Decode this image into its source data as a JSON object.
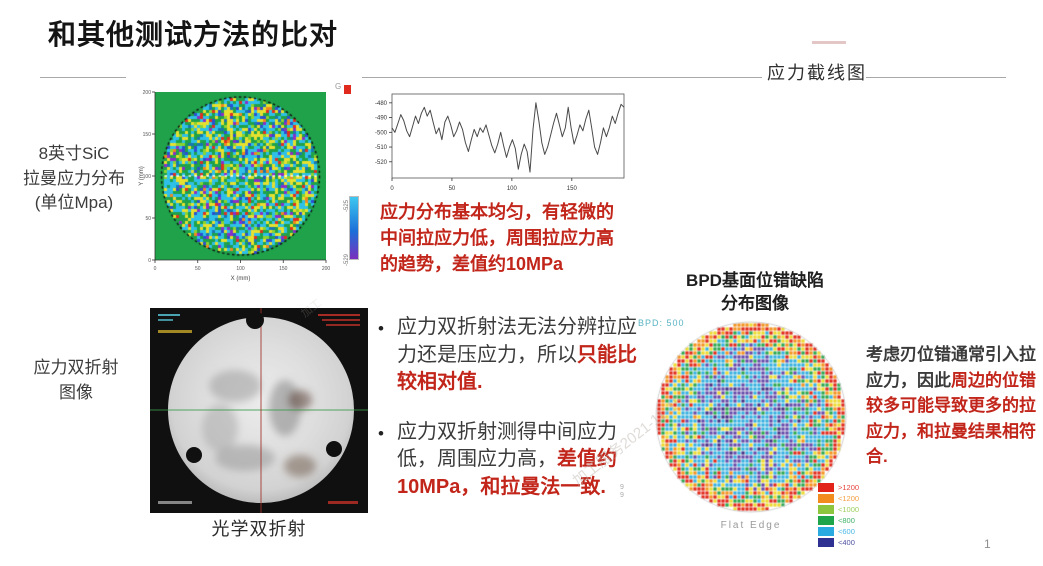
{
  "slide": {
    "title": "和其他测试方法的比对",
    "page_number": "1",
    "watermark_main": "加工服务2021-11-15",
    "watermark_small": "加工",
    "stray_marks": "9 9"
  },
  "section_header": {
    "label": "应力截线图"
  },
  "raman": {
    "label_lines": [
      "8英寸SiC",
      "拉曼应力分布",
      "(单位Mpa)"
    ],
    "marker_glyph": "G"
  },
  "cross_section_note": {
    "lines": [
      "应力分布基本均匀，有轻微的",
      "中间拉应力低，周围拉应力高",
      "的趋势，差值约10MPa"
    ]
  },
  "birefringence": {
    "label_lines": [
      "应力双折射",
      "图像"
    ],
    "caption": "光学双折射"
  },
  "bullets": [
    {
      "black": "应力双折射法无法分辨拉应力还是压应力，所以",
      "red": "只能比较相对值."
    },
    {
      "black": "应力双折射测得中间应力低，周围应力高，",
      "red": "差值约10MPa，和拉曼法一致."
    }
  ],
  "bpd": {
    "title_lines": [
      "BPD基面位错缺陷",
      "分布图像"
    ],
    "corner_label": "BPD: 500",
    "bottom_label": "Flat Edge",
    "legend": [
      {
        "color": "#e2231a",
        "label": ">1200"
      },
      {
        "color": "#f28c1e",
        "label": "<1200"
      },
      {
        "color": "#8cc63e",
        "label": "<1000"
      },
      {
        "color": "#1ea54c",
        "label": "<800"
      },
      {
        "color": "#29abe2",
        "label": "<600"
      },
      {
        "color": "#2e3192",
        "label": "<400"
      }
    ]
  },
  "side_note": {
    "black": "考虑刃位错通常引入拉应力，因此",
    "red": "周边的位错较多可能导致更多的拉应力，和拉曼结果相符合."
  },
  "chart_data": [
    {
      "type": "heatmap",
      "name": "raman_stress_map",
      "title": "8英寸SiC拉曼应力分布 (单位Mpa)",
      "xlabel": "X (mm)",
      "ylabel": "Y (mm)",
      "xticks": [
        0,
        50,
        100,
        150,
        200
      ],
      "yticks": [
        0,
        50,
        100,
        150,
        200
      ],
      "axis_range_mm": [
        0,
        200
      ],
      "background_color": "#1fa24a",
      "wafer_edge_style": "dotted-black",
      "cross_section_line_y_mm": 100,
      "value_range_mpa": [
        -529,
        -480
      ],
      "colorbar": {
        "colors": [
          "#3ec8f0",
          "#1b6fd8",
          "#7a2fbe"
        ],
        "top_label": "-525",
        "bottom_label": "-529"
      },
      "palette": [
        [
          "#2fc0e8",
          0.3
        ],
        [
          "#1fa24a",
          0.25
        ],
        [
          "#e6e02e",
          0.2
        ],
        [
          "#8cd42e",
          0.05
        ],
        [
          "#2b50d0",
          0.06
        ],
        [
          "#8a30c8",
          0.05
        ],
        [
          "#1878b0",
          0.04
        ],
        [
          "#f08820",
          0.02
        ],
        [
          "#e03020",
          0.03
        ]
      ],
      "seed": 7
    },
    {
      "type": "line",
      "name": "stress_cross_section",
      "title": "应力截线图",
      "ylabel_units": "MPa",
      "x_start": 0,
      "x_step": 2.45,
      "xticks": [
        0,
        50,
        100,
        150
      ],
      "yticks": [
        -480,
        -490,
        -500,
        -510,
        -520
      ],
      "ylim": [
        -531,
        -474
      ],
      "line_color": "#4a4a4a",
      "values": [
        -497,
        -500,
        -494,
        -488,
        -492,
        -499,
        -503,
        -496,
        -489,
        -494,
        -487,
        -483,
        -489,
        -485,
        -493,
        -501,
        -497,
        -505,
        -493,
        -489,
        -495,
        -503,
        -499,
        -493,
        -498,
        -507,
        -513,
        -505,
        -498,
        -503,
        -497,
        -500,
        -495,
        -502,
        -509,
        -514,
        -508,
        -500,
        -509,
        -517,
        -510,
        -505,
        -511,
        -525,
        -515,
        -508,
        -513,
        -527,
        -498,
        -480,
        -492,
        -507,
        -515,
        -510,
        -502,
        -494,
        -487,
        -495,
        -503,
        -497,
        -483,
        -497,
        -508,
        -502,
        -495,
        -499,
        -491,
        -485,
        -497,
        -510,
        -515,
        -507,
        -497,
        -503,
        -497,
        -489,
        -494,
        -487,
        -481,
        -483
      ]
    },
    {
      "type": "heatmap",
      "name": "bpd_map",
      "title": "BPD基面位错缺陷分布图像",
      "corner_label": "BPD: 500",
      "bottom_label": "Flat Edge",
      "legend_bins": [
        ">1200",
        "<1200",
        "<1000",
        "<800",
        "<600",
        "<400"
      ],
      "colors": {
        "red": "#e02618",
        "orange": "#f2901c",
        "yellow": "#ecd92c",
        "green": "#28a44c",
        "cyan": "#34aede",
        "purple": "#6348a8",
        "deep": "#413084"
      },
      "seed": 11
    }
  ]
}
